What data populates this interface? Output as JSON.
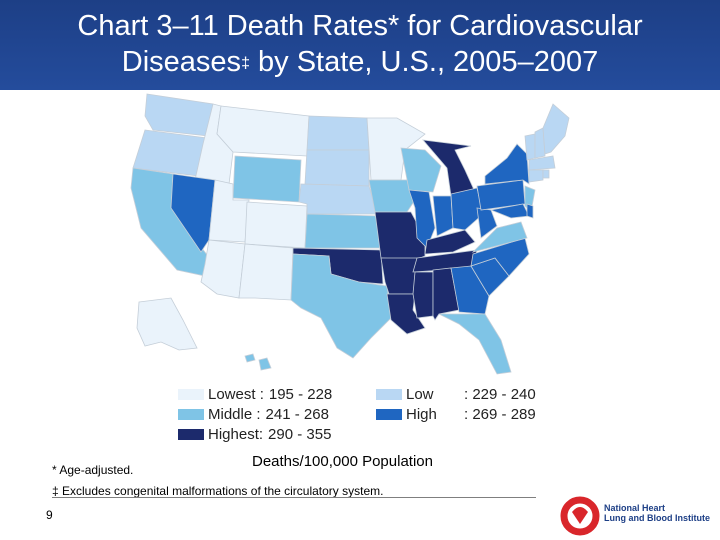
{
  "slide": {
    "title_line1": "Chart 3–11 Death Rates* for Cardiovascular",
    "title_line2_a": "Diseases",
    "title_line2_dagger": "‡",
    "title_line2_b": " by State, U.S., 2005–2007",
    "units_label": "Deaths/100,000 Population",
    "footnote_asterisk": "* Age-adjusted.",
    "footnote_dagger": "‡ Excludes congenital malformations of the circulatory system.",
    "page_number": "9",
    "logo_text_line1": "National Heart",
    "logo_text_line2": "Lung and Blood Institute"
  },
  "legend": [
    {
      "label": "Lowest :",
      "range": "195 - 228",
      "color": "#eaf3fb"
    },
    {
      "label": "Low",
      "range": ": 229 - 240",
      "color": "#b9d7f3"
    },
    {
      "label": "Middle :",
      "range": "241 - 268",
      "color": "#7fc4e6"
    },
    {
      "label": "High",
      "range": ": 269 - 289",
      "color": "#1f66c1"
    },
    {
      "label": "Highest:",
      "range": "290 - 355",
      "color": "#1c2a6c"
    }
  ],
  "state_categories": {
    "lowest": [
      "MT",
      "ID",
      "UT",
      "CO",
      "AZ",
      "NM",
      "MN",
      "AK"
    ],
    "low": [
      "WA",
      "OR",
      "ND",
      "SD",
      "NE",
      "ME",
      "VT",
      "NH",
      "MA",
      "CT",
      "RI"
    ],
    "middle": [
      "CA",
      "WY",
      "IA",
      "WI",
      "KS",
      "TX",
      "VA",
      "NC",
      "FL",
      "HI",
      "NJ"
    ],
    "high": [
      "NV",
      "IL",
      "IN",
      "OH",
      "PA",
      "NY",
      "SC",
      "GA",
      "DE",
      "MD",
      "WV"
    ],
    "highest": [
      "MI",
      "MO",
      "OK",
      "AR",
      "LA",
      "MS",
      "AL",
      "TN",
      "KY"
    ]
  }
}
